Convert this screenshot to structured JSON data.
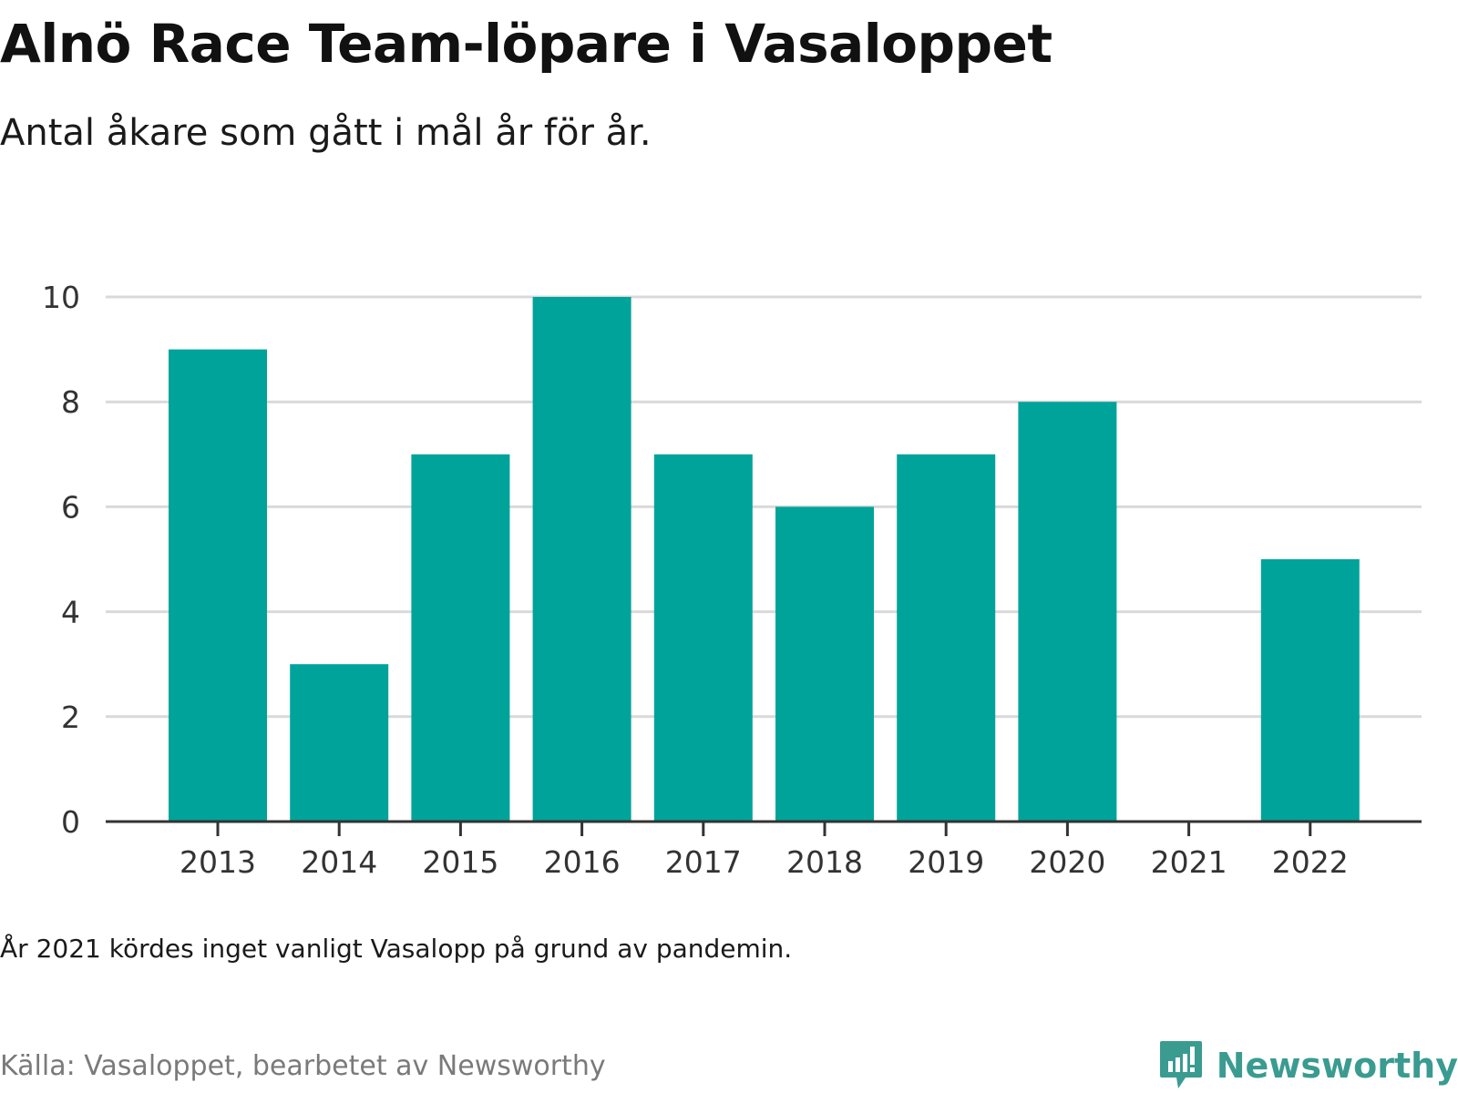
{
  "title": "Alnö Race Team-löpare i Vasaloppet",
  "subtitle": "Antal åkare som gått i mål år för år.",
  "note": "År 2021 kördes inget vanligt Vasalopp på grund av pandemin.",
  "source": "Källa: Vasaloppet, bearbetet av Newsworthy",
  "brand": {
    "name": "Newsworthy",
    "logo_icon": "bar-chart-speech-bubble-icon"
  },
  "colors": {
    "bar": "#00a39a",
    "grid": "#d9d9d9",
    "axis": "#333333",
    "brand": "#3a9b91"
  },
  "chart_data": {
    "type": "bar",
    "title": "Alnö Race Team-löpare i Vasaloppet",
    "subtitle": "Antal åkare som gått i mål år för år.",
    "categories": [
      "2013",
      "2014",
      "2015",
      "2016",
      "2017",
      "2018",
      "2019",
      "2020",
      "2021",
      "2022"
    ],
    "values": [
      9,
      3,
      7,
      10,
      7,
      6,
      7,
      8,
      null,
      5
    ],
    "yticks": [
      0,
      2,
      4,
      6,
      8,
      10
    ],
    "ylim": [
      0,
      10
    ],
    "grid": true,
    "legend": "none",
    "xlabel": "",
    "ylabel": ""
  }
}
